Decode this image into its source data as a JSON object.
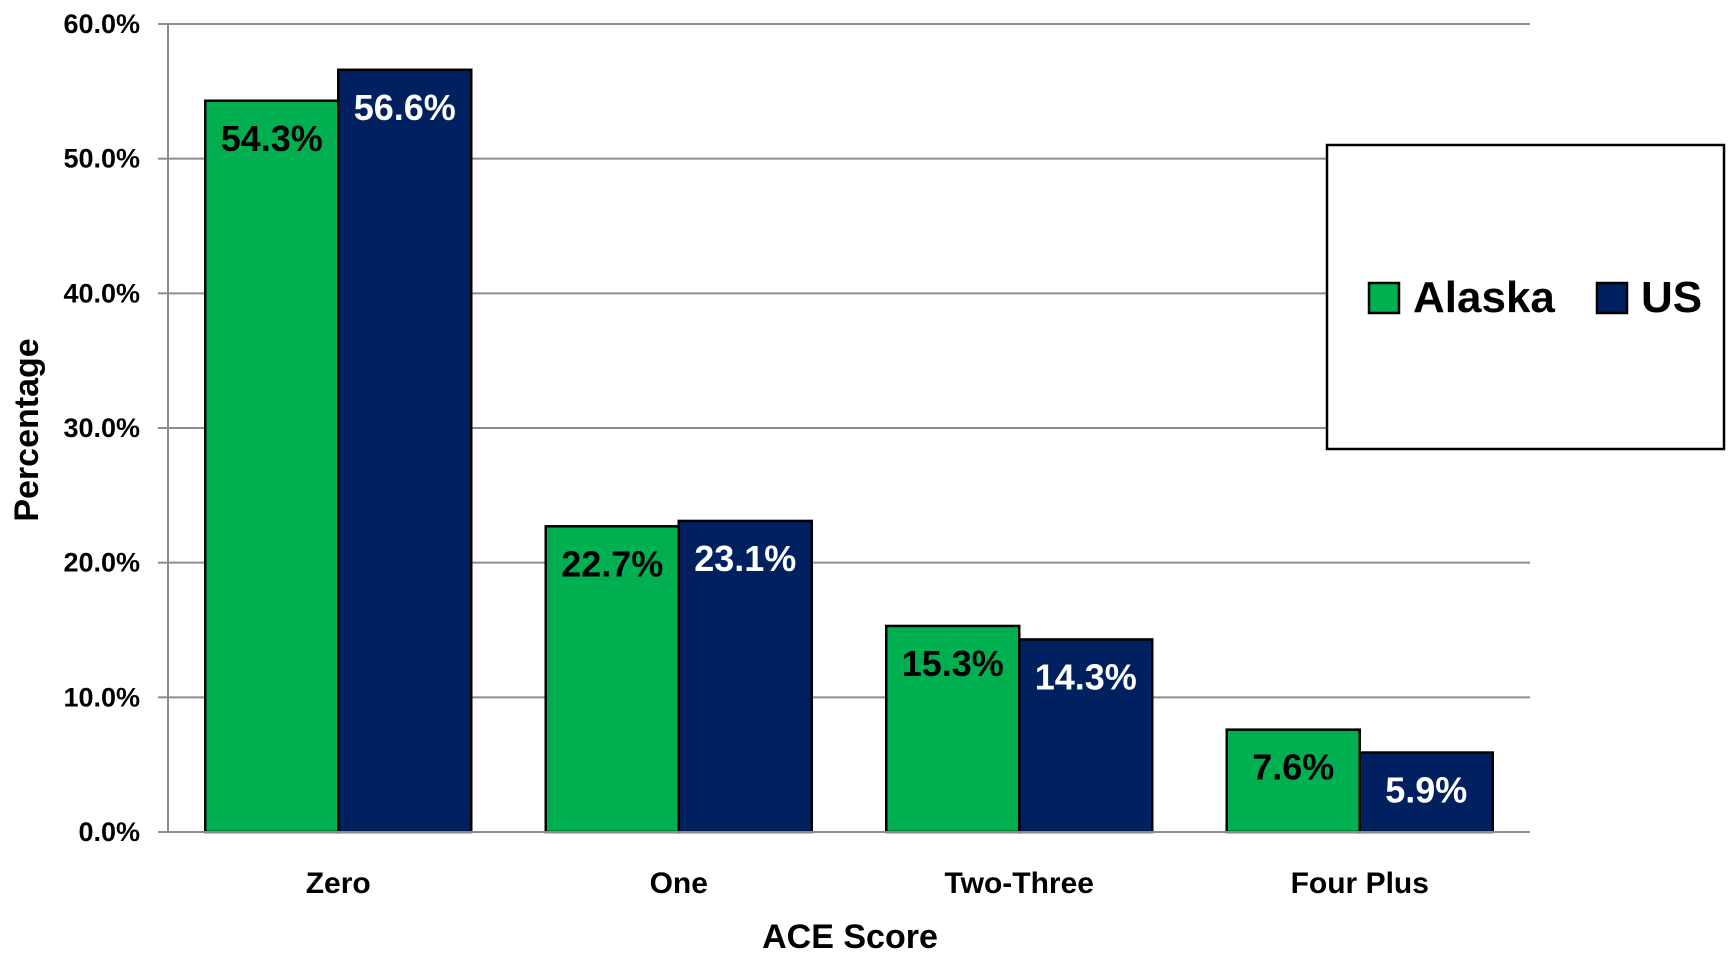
{
  "chart_data": {
    "type": "bar",
    "title": "",
    "xlabel": "ACE Score",
    "ylabel": "Percentage",
    "categories": [
      "Zero",
      "One",
      "Two-Three",
      "Four Plus"
    ],
    "series": [
      {
        "name": "Alaska",
        "color": "#00B050",
        "label_color": "#000000",
        "values": [
          54.3,
          22.7,
          15.3,
          7.6
        ],
        "labels": [
          "54.3%",
          "22.7%",
          "15.3%",
          "7.6%"
        ]
      },
      {
        "name": "US",
        "color": "#002060",
        "label_color": "#ffffff",
        "values": [
          56.6,
          23.1,
          14.3,
          5.9
        ],
        "labels": [
          "56.6%",
          "23.1%",
          "14.3%",
          "5.9%"
        ]
      }
    ],
    "ylim": [
      0,
      60
    ],
    "yticks": [
      0,
      10,
      20,
      30,
      40,
      50,
      60
    ],
    "ytick_labels": [
      "0.0%",
      "10.0%",
      "20.0%",
      "30.0%",
      "40.0%",
      "50.0%",
      "60.0%"
    ],
    "grid": true,
    "legend": {
      "placement": "right",
      "entries": [
        "Alaska",
        "US"
      ]
    }
  }
}
